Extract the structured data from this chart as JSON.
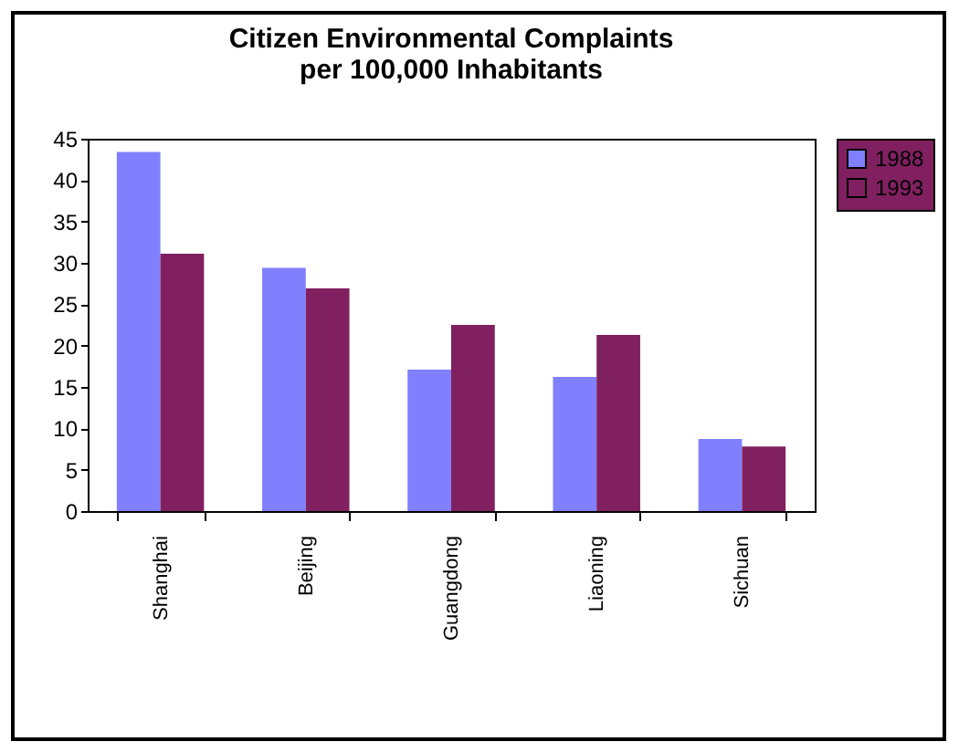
{
  "chart_data": {
    "type": "bar",
    "title": "Citizen Environmental Complaints per 100,000 Inhabitants",
    "categories": [
      "Shanghai",
      "Beijing",
      "Guangdong",
      "Liaoning",
      "Sichuan"
    ],
    "series": [
      {
        "name": "1988",
        "color": "#8080ff",
        "values": [
          43.4,
          29.4,
          17.1,
          16.2,
          8.7
        ]
      },
      {
        "name": "1993",
        "color": "#802060",
        "values": [
          31.1,
          26.9,
          22.5,
          21.3,
          7.8
        ]
      }
    ],
    "ylim": [
      0,
      45
    ],
    "yticks": [
      0,
      5,
      10,
      15,
      20,
      25,
      30,
      35,
      40,
      45
    ],
    "grid": false,
    "legend": "right"
  }
}
